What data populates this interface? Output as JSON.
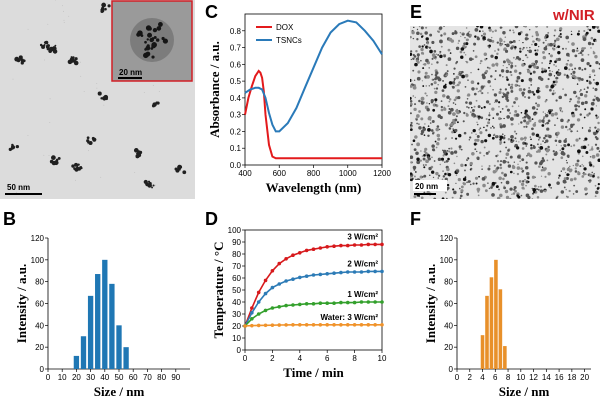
{
  "panels": {
    "A": {
      "letter": "A",
      "scale_bar": "50 nm",
      "inset_scale_bar": "20 nm"
    },
    "E": {
      "letter": "E",
      "scale_bar": "20 nm",
      "tag": "w/NIR",
      "tag_color": "#d21f26"
    },
    "B": {
      "letter": "B"
    },
    "C": {
      "letter": "C"
    },
    "D": {
      "letter": "D"
    },
    "F": {
      "letter": "F"
    }
  },
  "chart_data": [
    {
      "id": "B",
      "type": "bar",
      "xlabel": "Size / nm",
      "ylabel": "Intensity / a.u.",
      "xlim": [
        0,
        100
      ],
      "ylim": [
        0,
        120
      ],
      "xticks": [
        0,
        10,
        20,
        30,
        40,
        50,
        60,
        70,
        80,
        90
      ],
      "yticks": [
        0,
        20,
        40,
        60,
        80,
        100,
        120
      ],
      "bar_color": "#1f77b4",
      "x": [
        20,
        25,
        30,
        35,
        40,
        45,
        50,
        55
      ],
      "values": [
        12,
        30,
        67,
        87,
        100,
        78,
        40,
        20
      ]
    },
    {
      "id": "C",
      "type": "line",
      "xlabel": "Wavelength (nm)",
      "ylabel": "Absorbance / a.u.",
      "xlim": [
        400,
        1200
      ],
      "ylim": [
        0,
        0.9
      ],
      "xticks": [
        400,
        600,
        800,
        1000,
        1200
      ],
      "yticks": [
        0.0,
        0.1,
        0.2,
        0.3,
        0.4,
        0.5,
        0.6,
        0.7,
        0.8
      ],
      "legend": "top-left",
      "series": [
        {
          "name": "DOX",
          "color": "#e31a1c",
          "x": [
            400,
            420,
            440,
            460,
            480,
            490,
            500,
            510,
            520,
            540,
            560,
            580,
            600,
            700,
            800,
            1000,
            1200
          ],
          "y": [
            0.3,
            0.4,
            0.47,
            0.53,
            0.56,
            0.55,
            0.52,
            0.44,
            0.3,
            0.12,
            0.05,
            0.04,
            0.04,
            0.04,
            0.04,
            0.04,
            0.04
          ]
        },
        {
          "name": "TSNCs",
          "color": "#2a7ab9",
          "x": [
            400,
            430,
            460,
            480,
            500,
            520,
            540,
            560,
            580,
            600,
            650,
            700,
            750,
            800,
            850,
            900,
            950,
            1000,
            1050,
            1100,
            1150,
            1200
          ],
          "y": [
            0.43,
            0.45,
            0.46,
            0.46,
            0.45,
            0.4,
            0.31,
            0.24,
            0.2,
            0.2,
            0.25,
            0.34,
            0.46,
            0.58,
            0.7,
            0.79,
            0.84,
            0.86,
            0.85,
            0.8,
            0.74,
            0.66
          ]
        }
      ]
    },
    {
      "id": "D",
      "type": "line",
      "xlabel": "Time / min",
      "ylabel": "Temperature / °C",
      "xlim": [
        0,
        10
      ],
      "ylim": [
        0,
        100
      ],
      "xticks": [
        0,
        2,
        4,
        6,
        8,
        10
      ],
      "yticks": [
        0,
        10,
        20,
        30,
        40,
        50,
        60,
        70,
        80,
        90,
        100
      ],
      "series": [
        {
          "name": "3 W/cm²",
          "color": "#d7191c",
          "x": [
            0,
            0.5,
            1,
            1.5,
            2,
            2.5,
            3,
            3.5,
            4,
            4.5,
            5,
            5.5,
            6,
            6.5,
            7,
            7.5,
            8,
            8.5,
            9,
            9.5,
            10
          ],
          "y": [
            20,
            35,
            48,
            58,
            66,
            72,
            76,
            79,
            81,
            83,
            84,
            85,
            86,
            86.5,
            87,
            87,
            87.5,
            87.5,
            88,
            88,
            88
          ]
        },
        {
          "name": "2 W/cm²",
          "color": "#2c7bb6",
          "x": [
            0,
            0.5,
            1,
            1.5,
            2,
            2.5,
            3,
            3.5,
            4,
            4.5,
            5,
            5.5,
            6,
            6.5,
            7,
            7.5,
            8,
            8.5,
            9,
            9.5,
            10
          ],
          "y": [
            20,
            31,
            40,
            47,
            52,
            55,
            57.5,
            59,
            60.5,
            61.5,
            62.5,
            63,
            63.5,
            64,
            64.5,
            65,
            65,
            65,
            65.5,
            65.5,
            65.5
          ]
        },
        {
          "name": "1 W/cm²",
          "color": "#33a02c",
          "x": [
            0,
            0.5,
            1,
            1.5,
            2,
            2.5,
            3,
            3.5,
            4,
            4.5,
            5,
            5.5,
            6,
            6.5,
            7,
            7.5,
            8,
            8.5,
            9,
            9.5,
            10
          ],
          "y": [
            20,
            26,
            30,
            33,
            35,
            36,
            37,
            37.5,
            38,
            38.5,
            38.5,
            39,
            39,
            39,
            39.5,
            39.5,
            39.5,
            40,
            40,
            40,
            40
          ]
        },
        {
          "name": "Water: 3 W/cm²",
          "color": "#f0932b",
          "x": [
            0,
            0.5,
            1,
            1.5,
            2,
            2.5,
            3,
            3.5,
            4,
            4.5,
            5,
            5.5,
            6,
            6.5,
            7,
            7.5,
            8,
            8.5,
            9,
            9.5,
            10
          ],
          "y": [
            20,
            20.3,
            20.5,
            20.6,
            20.7,
            20.8,
            20.9,
            21,
            21,
            21,
            21,
            21,
            21,
            21,
            21,
            21,
            21,
            21,
            21,
            21,
            21
          ]
        }
      ]
    },
    {
      "id": "F",
      "type": "bar",
      "xlabel": "Size / nm",
      "ylabel": "Intensity / a.u.",
      "xlim": [
        0,
        21
      ],
      "ylim": [
        0,
        120
      ],
      "xticks": [
        0,
        2,
        4,
        6,
        8,
        10,
        12,
        14,
        16,
        18,
        20
      ],
      "yticks": [
        0,
        20,
        40,
        60,
        80,
        100,
        120
      ],
      "bar_color": "#e8902a",
      "x": [
        4.0,
        4.7,
        5.4,
        6.1,
        6.8,
        7.5
      ],
      "values": [
        31,
        67,
        84,
        100,
        73,
        21
      ]
    }
  ]
}
